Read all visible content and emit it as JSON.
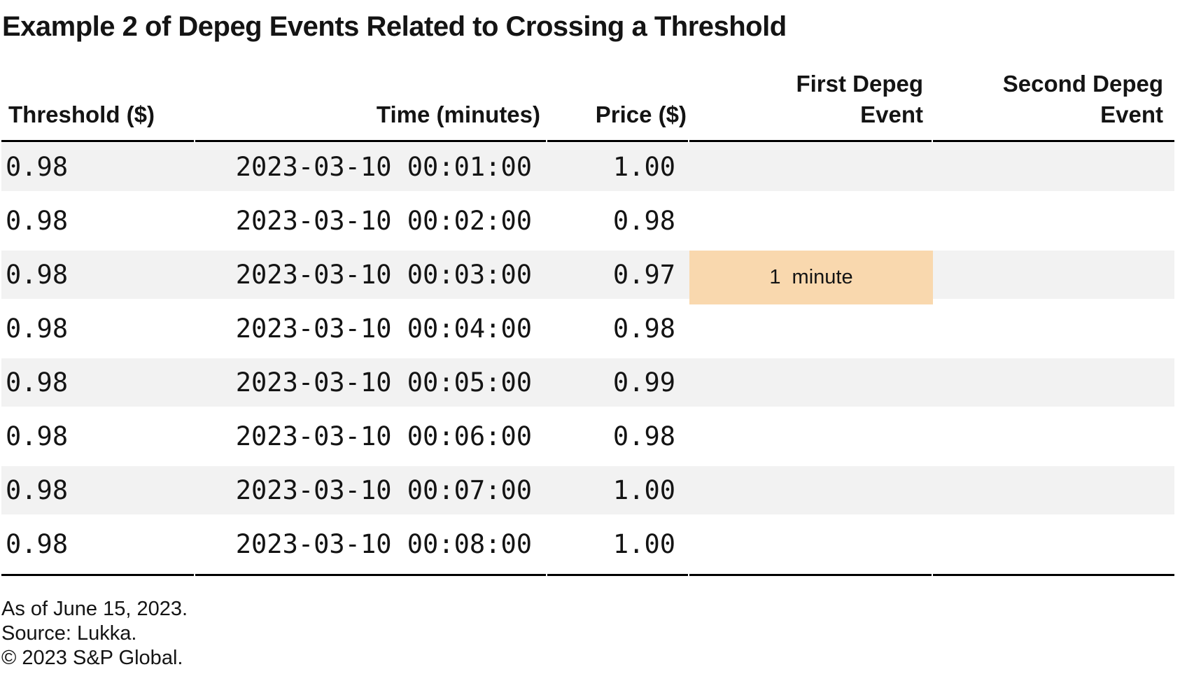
{
  "title": "Example 2 of Depeg Events Related to Crossing a Threshold",
  "table": {
    "columns": [
      {
        "key": "threshold",
        "label": "Threshold ($)"
      },
      {
        "key": "time",
        "label": "Time (minutes)"
      },
      {
        "key": "price",
        "label": "Price ($)"
      },
      {
        "key": "first",
        "label": "First Depeg\nEvent"
      },
      {
        "key": "second",
        "label": "Second Depeg\nEvent"
      }
    ],
    "rows": [
      {
        "threshold": "0.98",
        "time": "2023-03-10 00:01:00",
        "price": "1.00",
        "first": "",
        "second": "",
        "highlight": false
      },
      {
        "threshold": "0.98",
        "time": "2023-03-10 00:02:00",
        "price": "0.98",
        "first": "",
        "second": "",
        "highlight": false
      },
      {
        "threshold": "0.98",
        "time": "2023-03-10 00:03:00",
        "price": "0.97",
        "first": "1 minute",
        "second": "",
        "highlight": true
      },
      {
        "threshold": "0.98",
        "time": "2023-03-10 00:04:00",
        "price": "0.98",
        "first": "",
        "second": "",
        "highlight": false
      },
      {
        "threshold": "0.98",
        "time": "2023-03-10 00:05:00",
        "price": "0.99",
        "first": "",
        "second": "",
        "highlight": false
      },
      {
        "threshold": "0.98",
        "time": "2023-03-10 00:06:00",
        "price": "0.98",
        "first": "",
        "second": "",
        "highlight": false
      },
      {
        "threshold": "0.98",
        "time": "2023-03-10 00:07:00",
        "price": "1.00",
        "first": "",
        "second": "",
        "highlight": false
      },
      {
        "threshold": "0.98",
        "time": "2023-03-10 00:08:00",
        "price": "1.00",
        "first": "",
        "second": "",
        "highlight": false
      }
    ]
  },
  "footer": {
    "as_of": "As of June 15, 2023.",
    "source": "Source: Lukka.",
    "copyright": "© 2023 S&P Global."
  },
  "colors": {
    "stripe": "#f2f2f2",
    "highlight": "#f9d8ae",
    "border": "#000000",
    "text": "#141414"
  },
  "chart_data": {
    "type": "table",
    "title": "Example 2 of Depeg Events Related to Crossing a Threshold",
    "columns": [
      "Threshold ($)",
      "Time (minutes)",
      "Price ($)",
      "First Depeg Event",
      "Second Depeg Event"
    ],
    "rows": [
      [
        "0.98",
        "2023-03-10 00:01:00",
        "1.00",
        "",
        ""
      ],
      [
        "0.98",
        "2023-03-10 00:02:00",
        "0.98",
        "",
        ""
      ],
      [
        "0.98",
        "2023-03-10 00:03:00",
        "0.97",
        "1 minute",
        ""
      ],
      [
        "0.98",
        "2023-03-10 00:04:00",
        "0.98",
        "",
        ""
      ],
      [
        "0.98",
        "2023-03-10 00:05:00",
        "0.99",
        "",
        ""
      ],
      [
        "0.98",
        "2023-03-10 00:06:00",
        "0.98",
        "",
        ""
      ],
      [
        "0.98",
        "2023-03-10 00:07:00",
        "1.00",
        "",
        ""
      ],
      [
        "0.98",
        "2023-03-10 00:08:00",
        "1.00",
        "",
        ""
      ]
    ],
    "annotations": [
      {
        "row_index": 2,
        "column": "First Depeg Event",
        "text": "1 minute",
        "style": "orange-highlight"
      }
    ],
    "notes": [
      "As of June 15, 2023.",
      "Source: Lukka.",
      "© 2023 S&P Global."
    ],
    "layout_hints": {
      "striped_rows": "odd",
      "header_rule": true,
      "bottom_rule": true
    }
  }
}
